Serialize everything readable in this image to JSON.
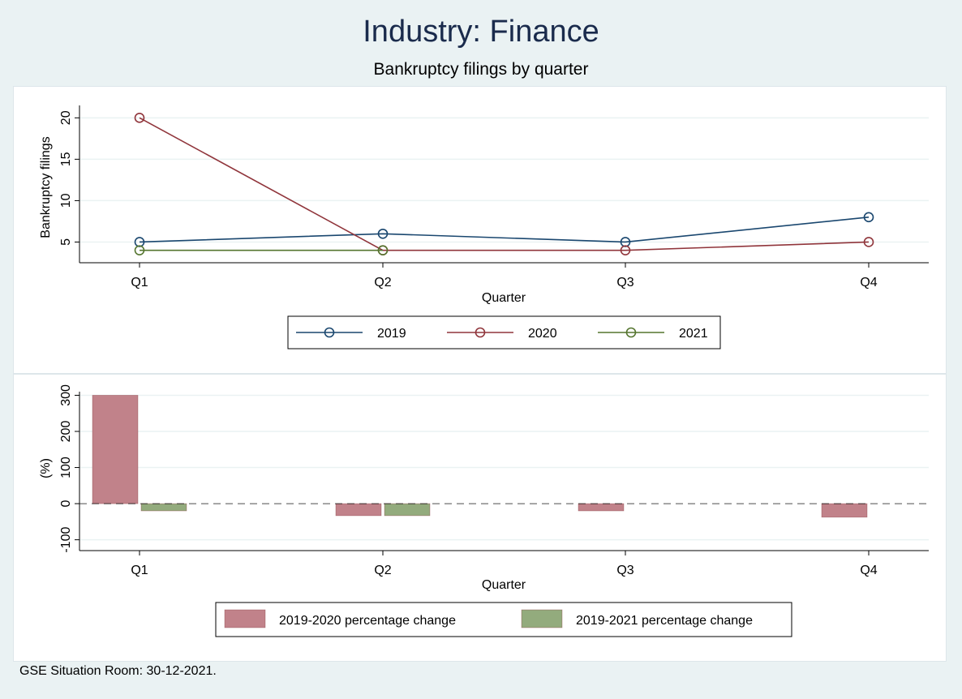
{
  "title": "Industry: Finance",
  "subtitle": "Bankruptcy filings by quarter",
  "footnote": "GSE Situation Room: 30-12-2021.",
  "chart_data": [
    {
      "type": "line",
      "categories": [
        "Q1",
        "Q2",
        "Q3",
        "Q4"
      ],
      "xlabel": "Quarter",
      "ylabel": "Bankruptcy filings",
      "yticks": [
        5,
        10,
        15,
        20
      ],
      "ylim": [
        2.5,
        21.5
      ],
      "grid": true,
      "legend_position": "bottom",
      "series": [
        {
          "name": "2019",
          "color": "#1a476f",
          "values": [
            5,
            6,
            5,
            8
          ]
        },
        {
          "name": "2020",
          "color": "#90353b",
          "values": [
            20,
            4,
            4,
            5
          ]
        },
        {
          "name": "2021",
          "color": "#55752f",
          "values": [
            4,
            4,
            null,
            null
          ]
        }
      ]
    },
    {
      "type": "bar",
      "categories": [
        "Q1",
        "Q2",
        "Q3",
        "Q4"
      ],
      "xlabel": "Quarter",
      "ylabel": "(%)",
      "yticks": [
        -100,
        0,
        100,
        200,
        300
      ],
      "ylim": [
        -130,
        310
      ],
      "grid": true,
      "reference_line": 0,
      "legend_position": "bottom",
      "series": [
        {
          "name": "2019-2020 percentage change",
          "color": "#c1828a",
          "values": [
            300,
            -33.3,
            -20,
            -37.5
          ]
        },
        {
          "name": "2019-2021 percentage change",
          "color": "#93ab7d",
          "values": [
            -20,
            -33.3,
            null,
            null
          ]
        }
      ]
    }
  ]
}
